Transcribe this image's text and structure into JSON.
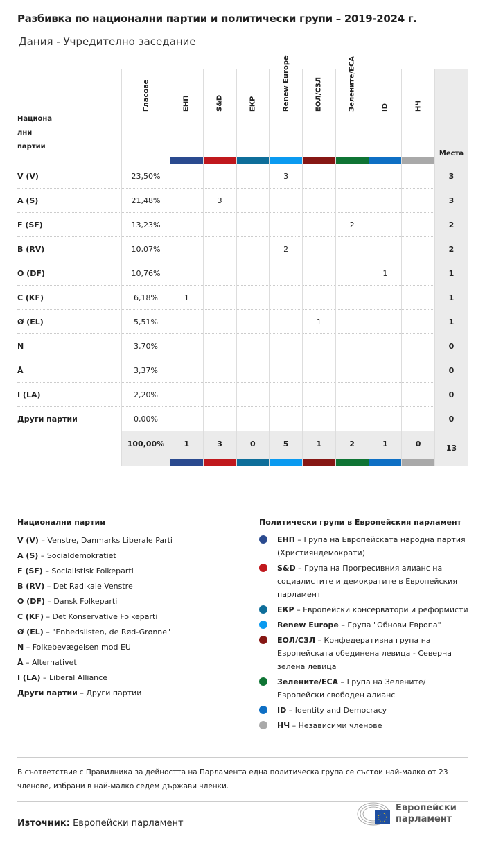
{
  "title": "Разбивка по национални партии и политически групи – 2019-2024 г.",
  "subtitle": "Дания - Учредително заседание",
  "table": {
    "party_header": "Национа лни партии",
    "votes_header": "Гласове",
    "seats_header": "Места",
    "groups": [
      {
        "label": "ЕНП",
        "color": "#2a4a8f"
      },
      {
        "label": "S&D",
        "color": "#c0181d"
      },
      {
        "label": "ЕКР",
        "color": "#0e6e9a"
      },
      {
        "label": "Renew Europe",
        "color": "#0a9af0"
      },
      {
        "label": "ЕОЛ/СЗЛ",
        "color": "#861714"
      },
      {
        "label": "Зелените/ЕСА",
        "color": "#0f7434"
      },
      {
        "label": "ID",
        "color": "#0e6fc4"
      },
      {
        "label": "НЧ",
        "color": "#a9a9a9"
      }
    ],
    "rows": [
      {
        "party": "V (V)",
        "votes": "23,50%",
        "cells": [
          "",
          "",
          "",
          "3",
          "",
          "",
          "",
          ""
        ],
        "seats": "3"
      },
      {
        "party": "A (S)",
        "votes": "21,48%",
        "cells": [
          "",
          "3",
          "",
          "",
          "",
          "",
          "",
          ""
        ],
        "seats": "3"
      },
      {
        "party": "F (SF)",
        "votes": "13,23%",
        "cells": [
          "",
          "",
          "",
          "",
          "",
          "2",
          "",
          ""
        ],
        "seats": "2"
      },
      {
        "party": "B (RV)",
        "votes": "10,07%",
        "cells": [
          "",
          "",
          "",
          "2",
          "",
          "",
          "",
          ""
        ],
        "seats": "2"
      },
      {
        "party": "O (DF)",
        "votes": "10,76%",
        "cells": [
          "",
          "",
          "",
          "",
          "",
          "",
          "1",
          ""
        ],
        "seats": "1"
      },
      {
        "party": "C (KF)",
        "votes": "6,18%",
        "cells": [
          "1",
          "",
          "",
          "",
          "",
          "",
          "",
          ""
        ],
        "seats": "1"
      },
      {
        "party": "Ø (EL)",
        "votes": "5,51%",
        "cells": [
          "",
          "",
          "",
          "",
          "1",
          "",
          "",
          ""
        ],
        "seats": "1"
      },
      {
        "party": "N",
        "votes": "3,70%",
        "cells": [
          "",
          "",
          "",
          "",
          "",
          "",
          "",
          ""
        ],
        "seats": "0"
      },
      {
        "party": "Å",
        "votes": "3,37%",
        "cells": [
          "",
          "",
          "",
          "",
          "",
          "",
          "",
          ""
        ],
        "seats": "0"
      },
      {
        "party": "I (LA)",
        "votes": "2,20%",
        "cells": [
          "",
          "",
          "",
          "",
          "",
          "",
          "",
          ""
        ],
        "seats": "0"
      },
      {
        "party": "Други партии",
        "votes": "0,00%",
        "cells": [
          "",
          "",
          "",
          "",
          "",
          "",
          "",
          ""
        ],
        "seats": "0"
      }
    ],
    "totals": {
      "votes": "100,00%",
      "cells": [
        "1",
        "3",
        "0",
        "5",
        "1",
        "2",
        "1",
        "0"
      ],
      "seats": "13"
    }
  },
  "legend_parties": {
    "title": "Национални партии",
    "items": [
      {
        "abbr": "V (V)",
        "name": "Venstre, Danmarks Liberale Parti"
      },
      {
        "abbr": "A (S)",
        "name": "Socialdemokratiet"
      },
      {
        "abbr": "F (SF)",
        "name": "Socialistisk Folkeparti"
      },
      {
        "abbr": "B (RV)",
        "name": "Det Radikale Venstre"
      },
      {
        "abbr": "O (DF)",
        "name": "Dansk Folkeparti"
      },
      {
        "abbr": "C (KF)",
        "name": "Det Konservative Folkeparti"
      },
      {
        "abbr": "Ø (EL)",
        "name": "\"Enhedslisten, de Rød-Grønne\""
      },
      {
        "abbr": "N",
        "name": "Folkebevægelsen mod EU"
      },
      {
        "abbr": "Å",
        "name": "Alternativet"
      },
      {
        "abbr": "I (LA)",
        "name": "Liberal Alliance"
      },
      {
        "abbr": "Други партии",
        "name": "Други партии"
      }
    ]
  },
  "legend_groups": {
    "title": "Политически групи в Европейския парламент",
    "items": [
      {
        "abbr": "ЕНП",
        "name": "Група на Европейската народна партия (Християндемократи)",
        "color": "#2a4a8f"
      },
      {
        "abbr": "S&D",
        "name": "Група на Прогресивния алианс на социалистите и демократите в Европейския парламент",
        "color": "#c0181d"
      },
      {
        "abbr": "ЕКР",
        "name": "Европейски консерватори и реформисти",
        "color": "#0e6e9a"
      },
      {
        "abbr": "Renew Europe",
        "name": "Група \"Обнови Европа\"",
        "color": "#0a9af0"
      },
      {
        "abbr": "ЕОЛ/СЗЛ",
        "name": "Конфедеративна група на Европейската обединена левица - Северна зелена левица",
        "color": "#861714"
      },
      {
        "abbr": "Зелените/ЕСА",
        "name": "Група на Зелените/ Европейски свободен алианс",
        "color": "#0f7434"
      },
      {
        "abbr": "ID",
        "name": "Identity and Democracy",
        "color": "#0e6fc4"
      },
      {
        "abbr": "НЧ",
        "name": "Независими членове",
        "color": "#a9a9a9"
      }
    ]
  },
  "note": "В съответствие с Правилника за дейността на Парламента една политическа група се състои най-малко от 23 членове, избрани в най-малко седем държави членки.",
  "source": {
    "label": "Източник:",
    "value": "Европейски парламент"
  },
  "logo": {
    "text": "Европейски парламент"
  }
}
